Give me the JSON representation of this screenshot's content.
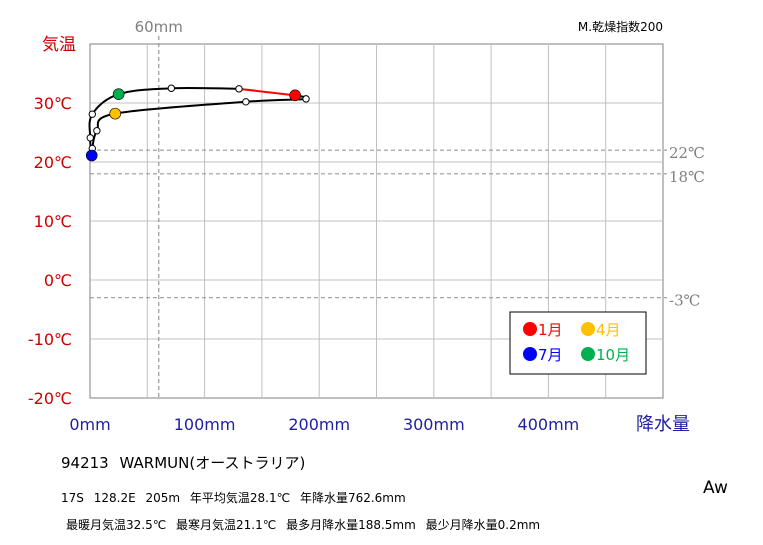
{
  "chart_data": {
    "type": "line",
    "title": "",
    "top_right_label": "M.乾燥指数200",
    "xlabel": "降水量",
    "ylabel": "気温",
    "x_unit": "mm",
    "y_unit": "℃",
    "xlim": [
      0,
      500
    ],
    "ylim": [
      -20,
      40
    ],
    "x_ticks": [
      0,
      100,
      200,
      300,
      400
    ],
    "x_tick_labels": [
      "0mm",
      "100mm",
      "200mm",
      "300mm",
      "400mm"
    ],
    "y_ticks": [
      30,
      20,
      10,
      0,
      -10,
      -20
    ],
    "y_tick_labels": [
      "30℃",
      "20℃",
      "10℃",
      "0℃",
      "-10℃",
      "-20℃"
    ],
    "grid": true,
    "reference_lines": [
      {
        "axis": "x",
        "value": 60,
        "label": "60mm"
      },
      {
        "axis": "y",
        "value": 22,
        "label": "22℃"
      },
      {
        "axis": "y",
        "value": 18,
        "label": "18℃"
      },
      {
        "axis": "y",
        "value": -3,
        "label": "-3℃"
      }
    ],
    "months": [
      {
        "month": 1,
        "precip": 179,
        "temp": 31.3
      },
      {
        "month": 2,
        "precip": 188.5,
        "temp": 30.7
      },
      {
        "month": 3,
        "precip": 136,
        "temp": 30.2
      },
      {
        "month": 4,
        "precip": 22,
        "temp": 28.2
      },
      {
        "month": 5,
        "precip": 6,
        "temp": 25.3
      },
      {
        "month": 6,
        "precip": 2,
        "temp": 22.3
      },
      {
        "month": 7,
        "precip": 1.5,
        "temp": 21.1
      },
      {
        "month": 8,
        "precip": 0.2,
        "temp": 24.1
      },
      {
        "month": 9,
        "precip": 2,
        "temp": 28.1
      },
      {
        "month": 10,
        "precip": 25,
        "temp": 31.5
      },
      {
        "month": 11,
        "precip": 71,
        "temp": 32.5
      },
      {
        "month": 12,
        "precip": 130,
        "temp": 32.4
      }
    ],
    "highlighted": [
      {
        "month": 1,
        "label": "1月",
        "color": "#ff0000"
      },
      {
        "month": 4,
        "label": "4月",
        "color": "#ffc000"
      },
      {
        "month": 7,
        "label": "7月",
        "color": "#0000ff"
      },
      {
        "month": 10,
        "label": "10月",
        "color": "#00b050"
      }
    ],
    "legend_position": "bottom-right",
    "colors": {
      "temp_axis_labels": "#cc0000",
      "precip_axis_labels": "#2020a0",
      "reference": "#999999",
      "grid": "#c0c0c0",
      "closing_segment": "#ff0000"
    }
  },
  "station": {
    "id": "94213",
    "name": "WARMUN(オーストラリア)"
  },
  "info_line1": [
    "17S",
    "128.2E",
    "205m",
    "年平均気温28.1℃",
    "年降水量762.6mm"
  ],
  "info_line2": [
    "最暖月気温32.5℃",
    "最寒月気温21.1℃",
    "最多月降水量188.5mm",
    "最少月降水量0.2mm"
  ],
  "koppen": "Aw"
}
